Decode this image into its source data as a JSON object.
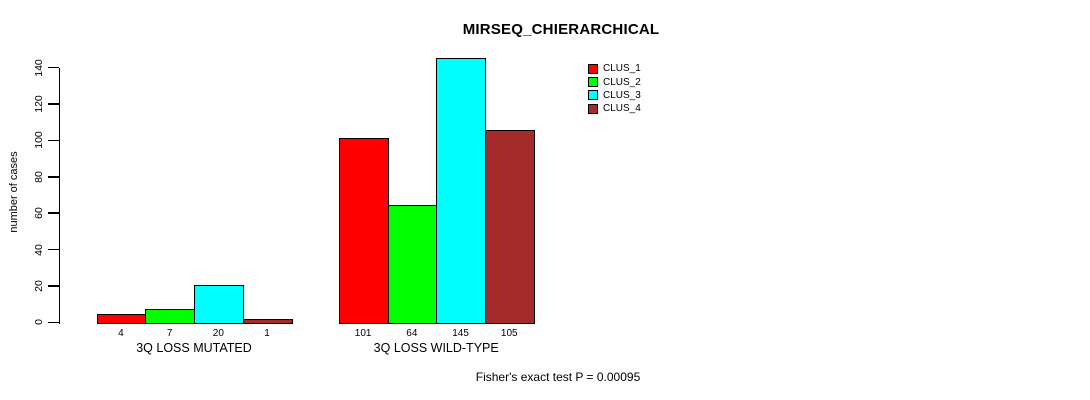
{
  "chart_data": {
    "type": "bar",
    "title": "MIRSEQ_CHIERARCHICAL",
    "ylabel": "number of cases",
    "xlabel": "",
    "ylim": [
      0,
      140
    ],
    "yticks": [
      0,
      20,
      40,
      60,
      80,
      100,
      120,
      140
    ],
    "grid": false,
    "legend_position": "top-right",
    "categories": [
      "3Q LOSS MUTATED",
      "3Q LOSS WILD-TYPE"
    ],
    "series": [
      {
        "name": "CLUS_1",
        "color": "#FF0000",
        "values": [
          4,
          101
        ]
      },
      {
        "name": "CLUS_2",
        "color": "#00FF00",
        "values": [
          7,
          64
        ]
      },
      {
        "name": "CLUS_3",
        "color": "#00FFFF",
        "values": [
          20,
          145
        ]
      },
      {
        "name": "CLUS_4",
        "color": "#A52A2A",
        "values": [
          1,
          105
        ]
      }
    ],
    "bar_value_labels": [
      [
        4,
        7,
        20,
        1
      ],
      [
        101,
        64,
        145,
        105
      ]
    ],
    "annotation": "Fisher's exact test P = 0.00095",
    "axis_color": "#000000",
    "bar_border_color": "#000000"
  }
}
